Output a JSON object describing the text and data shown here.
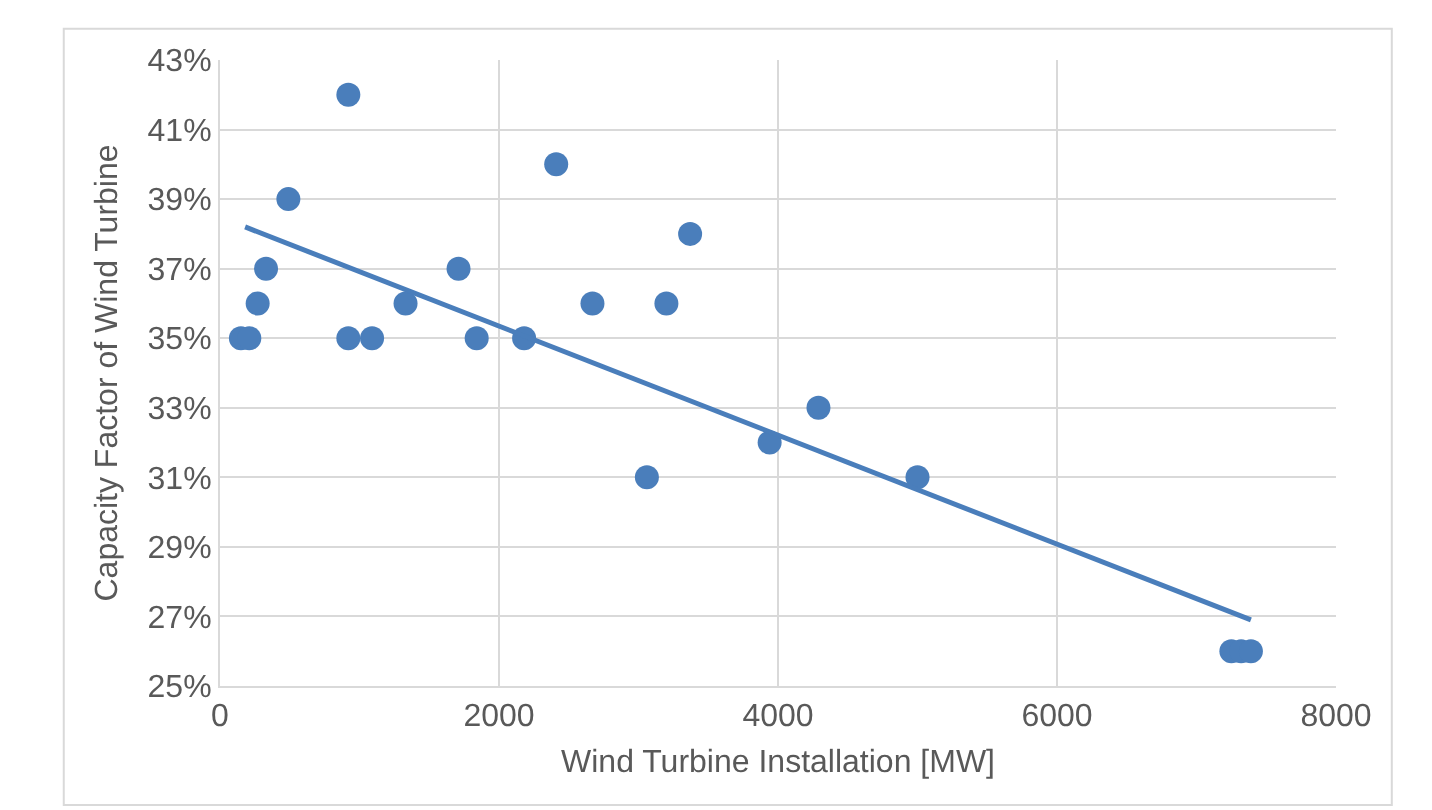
{
  "chart_data": {
    "type": "scatter",
    "xlabel": "Wind Turbine Installation [MW]",
    "ylabel": "Capacity Factor of Wind Turbine",
    "xlim": [
      0,
      8000
    ],
    "xticks": [
      0,
      2000,
      4000,
      6000,
      8000
    ],
    "ylim": [
      25,
      43
    ],
    "yticks": [
      {
        "value": 25,
        "label": "25%"
      },
      {
        "value": 27,
        "label": "27%"
      },
      {
        "value": 29,
        "label": "29%"
      },
      {
        "value": 31,
        "label": "31%"
      },
      {
        "value": 33,
        "label": "33%"
      },
      {
        "value": 35,
        "label": "35%"
      },
      {
        "value": 37,
        "label": "37%"
      },
      {
        "value": 39,
        "label": "39%"
      },
      {
        "value": 41,
        "label": "41%"
      },
      {
        "value": 43,
        "label": "43%"
      }
    ],
    "grid": true,
    "legend": false,
    "series": [
      {
        "marker": "circle",
        "color": "#4a7ebb",
        "x": [
          920,
          2410,
          490,
          3370,
          330,
          1710,
          270,
          1330,
          2670,
          3200,
          150,
          210,
          920,
          1090,
          1840,
          2180,
          4290,
          3940,
          3060,
          5000,
          7250,
          7320,
          7390
        ],
        "values": [
          42,
          40,
          39,
          38,
          37,
          37,
          36,
          36,
          36,
          36,
          35,
          35,
          35,
          35,
          35,
          35,
          33,
          32,
          31,
          31,
          26,
          26,
          26
        ]
      },
      {
        "type": "line",
        "marker": "none",
        "color": "#4a7ebb",
        "line_style": "solid",
        "x": [
          180,
          7390
        ],
        "values": [
          38.2,
          26.9
        ]
      }
    ]
  }
}
